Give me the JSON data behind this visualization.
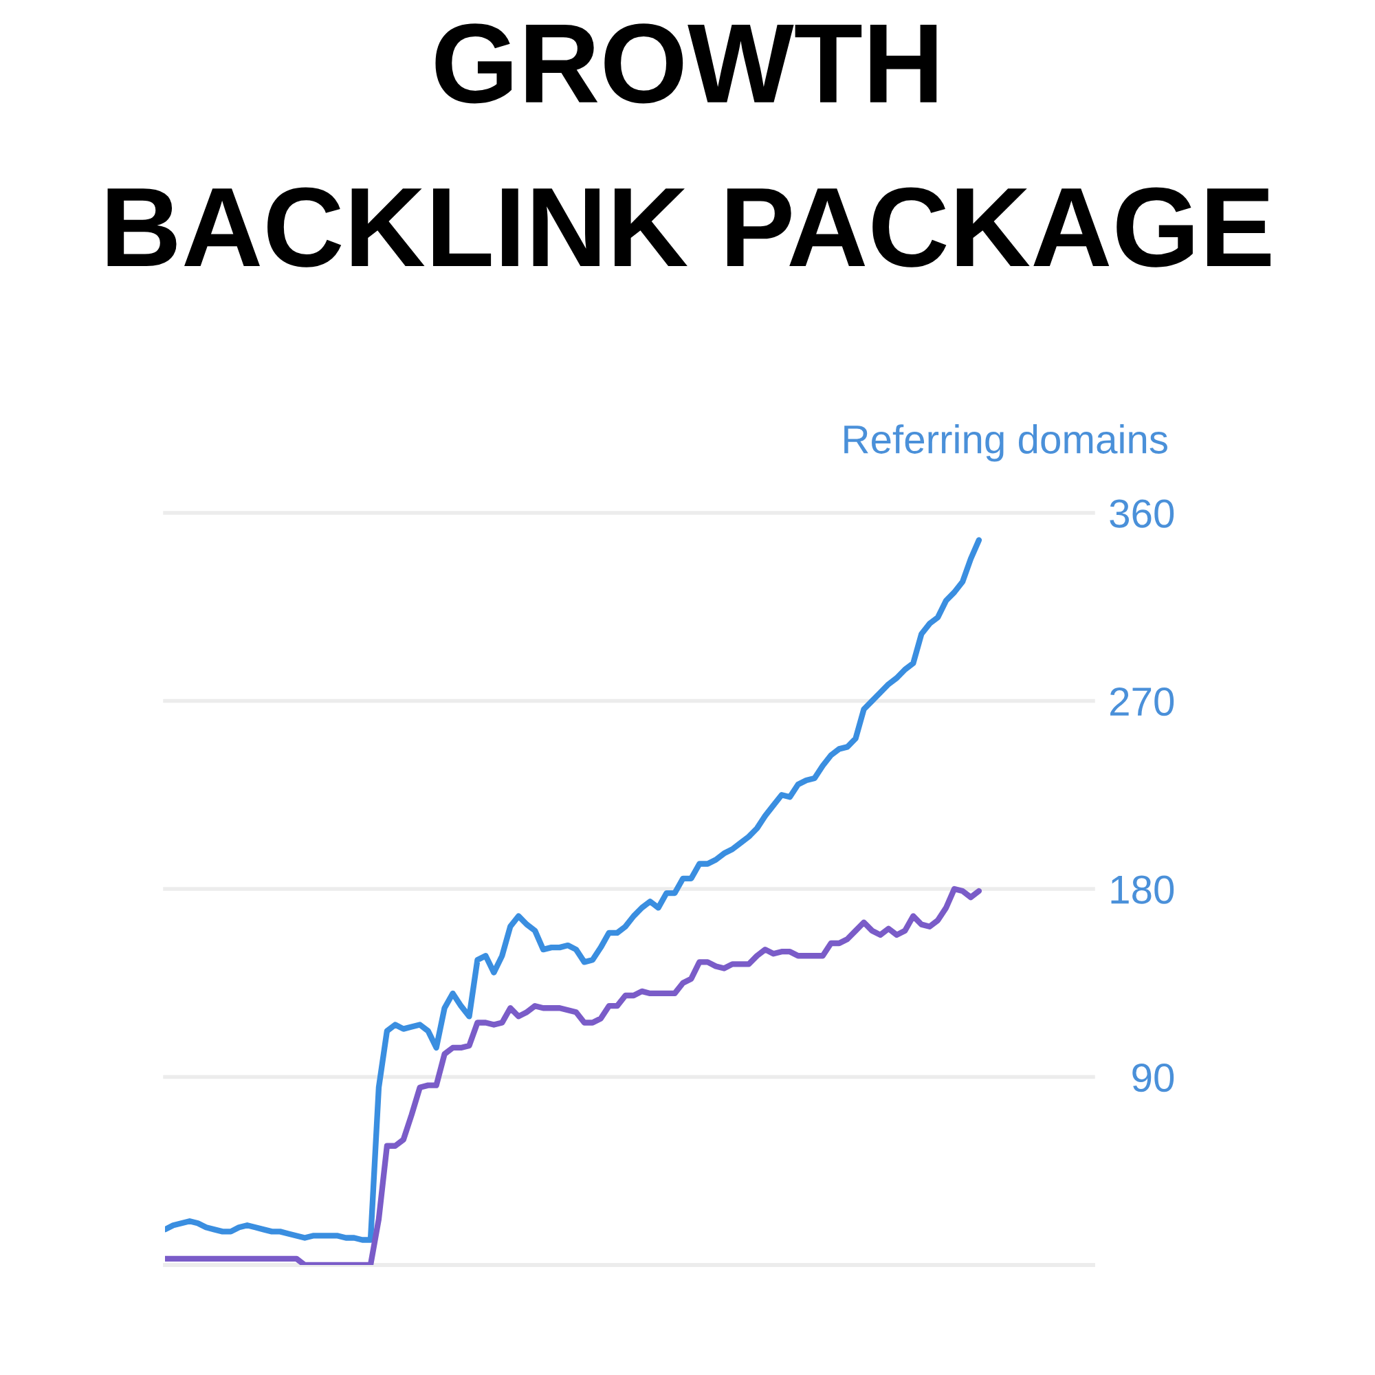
{
  "chart_data": {
    "type": "line",
    "title": "GROWTH\nBACKLINK PACKAGE",
    "ylabel": "Referring domains",
    "categories": [
      null,
      null,
      null,
      null,
      null,
      null,
      null,
      null,
      null,
      null,
      null,
      null,
      null,
      null,
      null,
      null,
      null,
      null,
      null,
      null,
      null,
      null,
      null,
      null,
      null,
      null,
      null,
      null,
      null,
      null,
      null,
      null,
      null,
      null,
      null,
      null,
      null,
      null,
      null,
      null,
      null,
      null,
      null,
      null,
      null,
      null,
      null,
      null,
      null,
      null,
      null,
      null,
      null,
      null,
      null,
      null,
      null,
      null,
      null,
      null,
      null,
      null,
      null,
      null,
      null,
      null,
      null,
      null,
      null,
      null,
      null,
      null,
      null,
      null,
      null,
      null,
      null,
      null,
      null,
      null,
      null,
      null,
      null,
      null,
      null,
      null,
      null,
      null,
      null,
      null,
      null,
      null,
      null,
      null,
      null,
      null,
      null,
      null,
      null,
      null
    ],
    "series": [
      {
        "color": "#3a8ee0",
        "values": [
          17,
          19,
          20,
          21,
          20,
          18,
          17,
          16,
          16,
          18,
          19,
          18,
          17,
          16,
          16,
          15,
          14,
          13,
          14,
          14,
          14,
          14,
          13,
          13,
          12,
          12,
          85,
          112,
          115,
          113,
          114,
          115,
          112,
          104,
          123,
          130,
          124,
          119,
          146,
          148,
          140,
          148,
          162,
          167,
          163,
          160,
          151,
          152,
          152,
          153,
          151,
          145,
          146,
          152,
          159,
          159,
          162,
          167,
          171,
          174,
          171,
          178,
          178,
          185,
          185,
          192,
          192,
          194,
          197,
          199,
          202,
          205,
          209,
          215,
          220,
          225,
          224,
          230,
          232,
          233,
          239,
          244,
          247,
          248,
          252,
          266,
          270,
          274,
          278,
          281,
          285,
          288,
          302,
          307,
          310,
          318,
          322,
          327,
          338,
          347
        ]
      },
      {
        "color": "#7a5cc8",
        "values": [
          3,
          3,
          3,
          3,
          3,
          3,
          3,
          3,
          3,
          3,
          3,
          3,
          3,
          3,
          3,
          3,
          3,
          0,
          0,
          0,
          0,
          0,
          0,
          0,
          0,
          0,
          22,
          57,
          57,
          60,
          72,
          85,
          86,
          86,
          101,
          104,
          104,
          105,
          116,
          116,
          115,
          116,
          123,
          119,
          121,
          124,
          123,
          123,
          123,
          122,
          121,
          116,
          116,
          118,
          124,
          124,
          129,
          129,
          131,
          130,
          130,
          130,
          130,
          135,
          137,
          145,
          145,
          143,
          142,
          144,
          144,
          144,
          148,
          151,
          149,
          150,
          150,
          148,
          148,
          148,
          148,
          154,
          154,
          156,
          160,
          164,
          160,
          158,
          161,
          158,
          160,
          167,
          163,
          162,
          165,
          171,
          180,
          179,
          176,
          179
        ]
      }
    ],
    "ylim": [
      0,
      360
    ],
    "yticks": [
      {
        "value": 0,
        "label": null
      },
      90,
      180,
      270,
      360
    ],
    "grid": "y",
    "tick_labels": "y"
  }
}
